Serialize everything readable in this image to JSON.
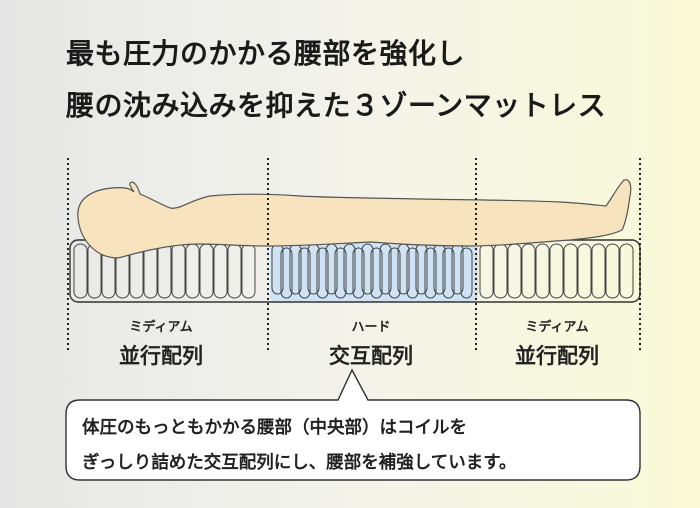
{
  "headline": {
    "line1": "最も圧力のかかる腰部を強化し",
    "line2": "腰の沈み込みを抑えた３ゾーンマットレス"
  },
  "zones": [
    {
      "hardness": "ミディアム",
      "arrangement": "並行配列"
    },
    {
      "hardness": "ハード",
      "arrangement": "交互配列"
    },
    {
      "hardness": "ミディアム",
      "arrangement": "並行配列"
    }
  ],
  "callout": {
    "line1": "体圧のもっともかかる腰部（中央部）はコイルを",
    "line2": "ぎっしり詰めた交互配列にし、腰部を補強しています。"
  },
  "colors": {
    "body_fill": "#f7e3be",
    "hard_zone_fill": "#cfe3f5",
    "coil_fill": "#ffffff"
  }
}
